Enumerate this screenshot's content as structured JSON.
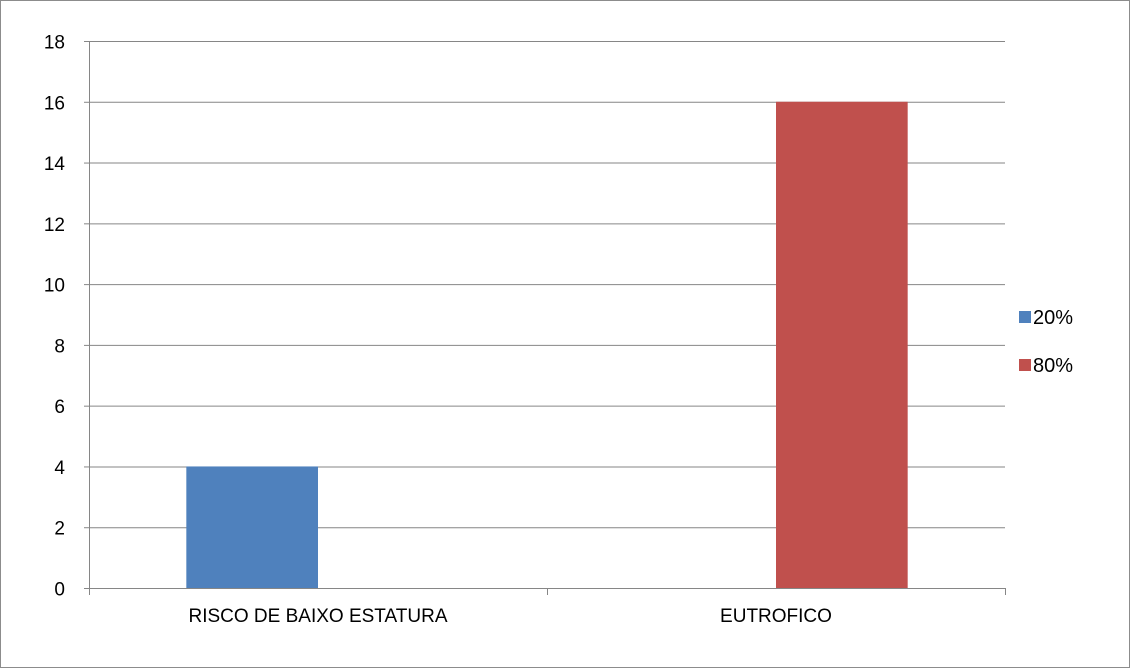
{
  "chart_data": {
    "type": "bar",
    "title": "",
    "xlabel": "",
    "ylabel": "",
    "categories": [
      "RISCO DE BAIXO ESTATURA",
      "EUTROFICO"
    ],
    "series": [
      {
        "name": "20%",
        "values": [
          4,
          null
        ],
        "color": "#4F81BD"
      },
      {
        "name": "80%",
        "values": [
          null,
          16
        ],
        "color": "#C0504D"
      }
    ],
    "ylim": [
      0,
      18
    ],
    "y_ticks": [
      0,
      2,
      4,
      6,
      8,
      10,
      12,
      14,
      16,
      18
    ],
    "grid": true,
    "legend_position": "right"
  }
}
